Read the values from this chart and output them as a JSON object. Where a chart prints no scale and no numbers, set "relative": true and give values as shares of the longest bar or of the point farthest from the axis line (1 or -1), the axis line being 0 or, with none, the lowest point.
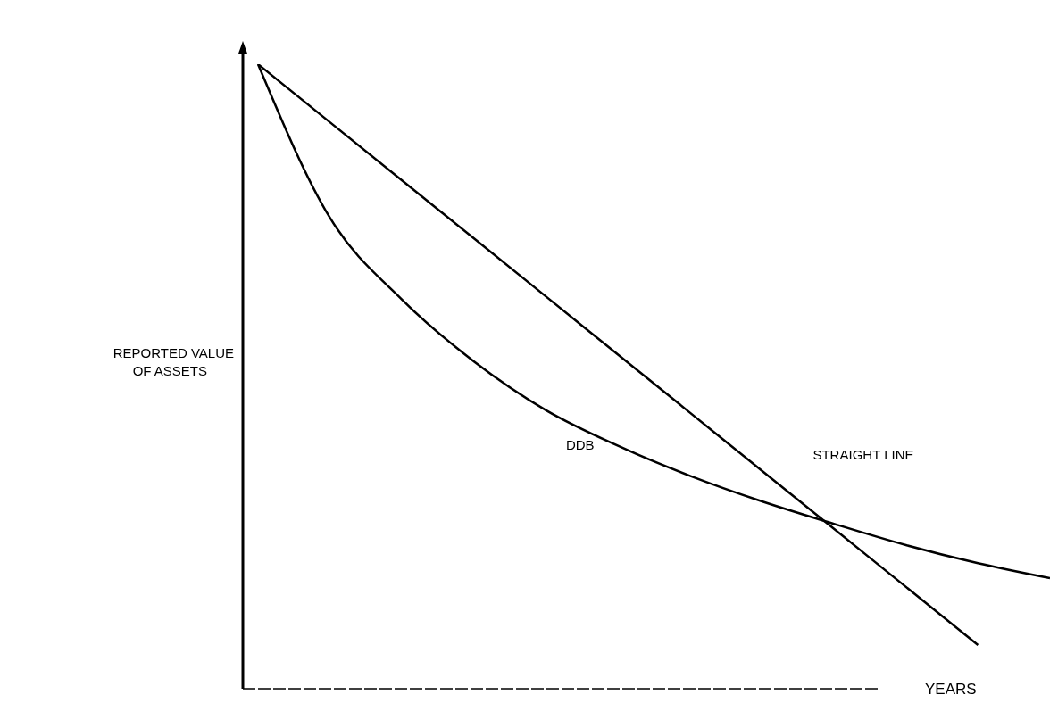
{
  "chart_data": {
    "type": "line",
    "relative": true,
    "xlabel": "YEARS",
    "ylabel": "REPORTED VALUE OF ASSETS",
    "categories": [
      null,
      null,
      null,
      null,
      null,
      null,
      null,
      null,
      null,
      null,
      null,
      null
    ],
    "series": [
      {
        "name": "STRAIGHT LINE",
        "color": "#000000",
        "values": [
          1,
          0.907,
          0.814,
          0.721,
          0.628,
          0.535,
          0.442,
          0.349,
          0.256,
          0.163,
          0.07,
          null
        ]
      },
      {
        "name": "DDB",
        "color": "#000000",
        "values": [
          1,
          0.754,
          0.623,
          0.524,
          0.446,
          0.389,
          0.341,
          0.3,
          0.264,
          0.23,
          0.201,
          0.177
        ]
      }
    ],
    "grid": false,
    "legend": false,
    "marker": "none",
    "line_style": "solid"
  }
}
